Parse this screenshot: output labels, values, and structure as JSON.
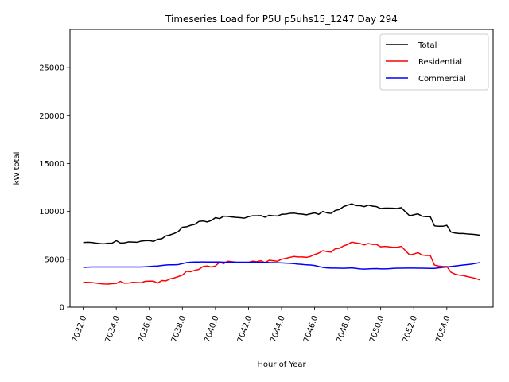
{
  "chart_data": {
    "type": "line",
    "title": "Timeseries Load for P5U p5uhs15_1247  Day 294",
    "xlabel": "Hour of Year",
    "ylabel": "kW total",
    "xlim": [
      7031.2,
      7056.8
    ],
    "ylim": [
      0,
      29000
    ],
    "xticks": [
      7032,
      7034,
      7036,
      7038,
      7040,
      7042,
      7044,
      7046,
      7048,
      7050,
      7052,
      7054
    ],
    "xtick_labels": [
      "7032.0",
      "7034.0",
      "7036.0",
      "7038.0",
      "7040.0",
      "7042.0",
      "7044.0",
      "7046.0",
      "7048.0",
      "7050.0",
      "7052.0",
      "7054.0"
    ],
    "yticks": [
      0,
      5000,
      10000,
      15000,
      20000,
      25000
    ],
    "ytick_labels": [
      "0",
      "5000",
      "10000",
      "15000",
      "20000",
      "25000"
    ],
    "legend_position": "top-right",
    "x_start": 7032,
    "x_step": 0.25,
    "series": [
      {
        "name": "Total",
        "color": "#000000",
        "values": [
          6750,
          6780,
          6760,
          6700,
          6650,
          6620,
          6680,
          6690,
          6950,
          6700,
          6720,
          6820,
          6800,
          6780,
          6900,
          6950,
          6960,
          6870,
          7100,
          7150,
          7450,
          7550,
          7700,
          7900,
          8350,
          8400,
          8550,
          8650,
          8950,
          9000,
          8900,
          9050,
          9350,
          9250,
          9500,
          9480,
          9420,
          9380,
          9350,
          9300,
          9450,
          9550,
          9550,
          9570,
          9400,
          9600,
          9550,
          9520,
          9700,
          9720,
          9800,
          9820,
          9750,
          9720,
          9650,
          9750,
          9850,
          9700,
          10000,
          9850,
          9800,
          10100,
          10200,
          10500,
          10650,
          10800,
          10600,
          10600,
          10500,
          10650,
          10550,
          10500,
          10300,
          10350,
          10350,
          10330,
          10300,
          10400,
          9950,
          9550,
          9650,
          9750,
          9500,
          9450,
          9450,
          8500,
          8450,
          8450,
          8550,
          7850,
          7750,
          7700,
          7700,
          7650,
          7620,
          7580,
          7520
        ]
      },
      {
        "name": "Residential",
        "color": "#ff0000",
        "values": [
          2600,
          2600,
          2580,
          2520,
          2460,
          2420,
          2410,
          2450,
          2480,
          2700,
          2500,
          2520,
          2600,
          2580,
          2550,
          2700,
          2720,
          2720,
          2520,
          2780,
          2750,
          2950,
          3050,
          3200,
          3350,
          3750,
          3700,
          3850,
          3950,
          4250,
          4300,
          4200,
          4300,
          4700,
          4550,
          4800,
          4750,
          4700,
          4680,
          4650,
          4680,
          4800,
          4750,
          4850,
          4650,
          4900,
          4850,
          4800,
          5000,
          5100,
          5200,
          5300,
          5250,
          5250,
          5200,
          5300,
          5500,
          5650,
          5900,
          5800,
          5750,
          6100,
          6150,
          6400,
          6550,
          6800,
          6700,
          6650,
          6500,
          6650,
          6550,
          6550,
          6300,
          6350,
          6300,
          6250,
          6250,
          6350,
          5900,
          5450,
          5550,
          5700,
          5450,
          5400,
          5400,
          4400,
          4300,
          4250,
          4250,
          3650,
          3450,
          3350,
          3300,
          3200,
          3100,
          3000,
          2850
        ]
      },
      {
        "name": "Commercial",
        "color": "#0000ff",
        "values": [
          4150,
          4180,
          4200,
          4200,
          4200,
          4200,
          4200,
          4200,
          4200,
          4200,
          4200,
          4200,
          4200,
          4200,
          4200,
          4220,
          4250,
          4280,
          4300,
          4350,
          4400,
          4420,
          4420,
          4450,
          4550,
          4650,
          4700,
          4720,
          4720,
          4730,
          4720,
          4720,
          4720,
          4720,
          4700,
          4700,
          4700,
          4700,
          4700,
          4700,
          4700,
          4700,
          4700,
          4680,
          4680,
          4660,
          4650,
          4640,
          4620,
          4600,
          4580,
          4550,
          4500,
          4470,
          4420,
          4400,
          4350,
          4250,
          4150,
          4100,
          4080,
          4080,
          4070,
          4060,
          4080,
          4100,
          4050,
          4000,
          3980,
          4000,
          4020,
          4030,
          4000,
          4000,
          4020,
          4050,
          4070,
          4070,
          4080,
          4080,
          4080,
          4070,
          4070,
          4060,
          4050,
          4050,
          4100,
          4150,
          4200,
          4250,
          4300,
          4350,
          4400,
          4450,
          4500,
          4580,
          4650
        ]
      }
    ]
  }
}
